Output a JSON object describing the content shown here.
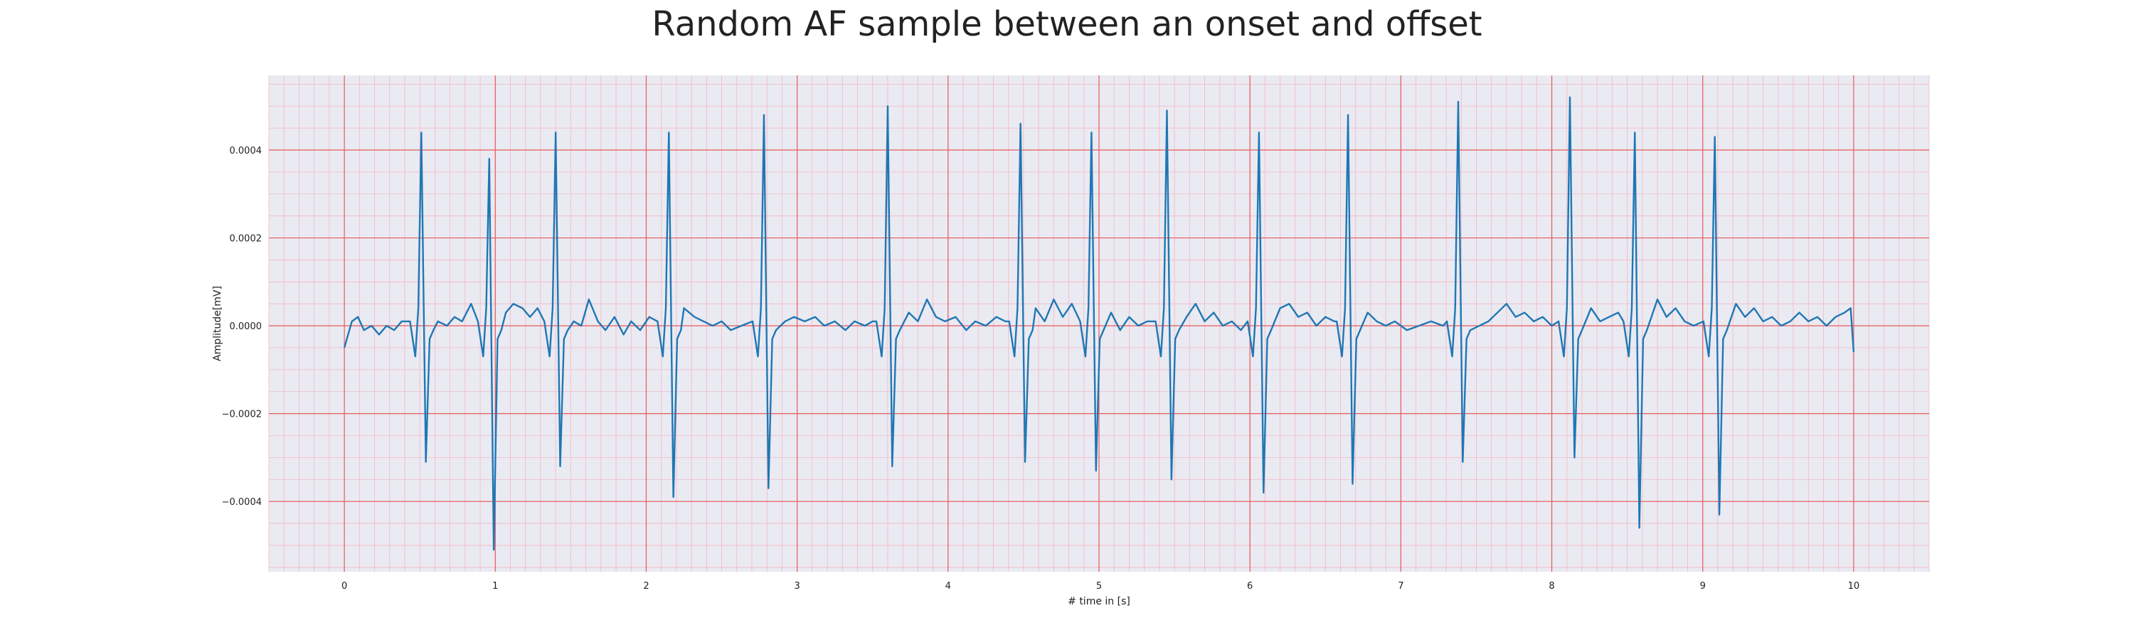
{
  "chart_data": {
    "type": "line",
    "title": "Random AF sample between an onset and offset",
    "xlabel": "# time in [s]",
    "ylabel": "Amplitude[mV]",
    "xlim": [
      -0.5,
      10.5
    ],
    "ylim": [
      -0.00056,
      0.00057
    ],
    "xticks": [
      0,
      1,
      2,
      3,
      4,
      5,
      6,
      7,
      8,
      9,
      10
    ],
    "xtick_labels": [
      "0",
      "1",
      "2",
      "3",
      "4",
      "5",
      "6",
      "7",
      "8",
      "9",
      "10"
    ],
    "yticks": [
      -0.0004,
      -0.0002,
      0.0,
      0.0002,
      0.0004
    ],
    "ytick_labels": [
      "−0.0004",
      "−0.0002",
      "0.0000",
      "0.0002",
      "0.0004"
    ],
    "grid": true,
    "minor_grid": true,
    "colors": {
      "line": "#1f77b4",
      "plot_background": "#eaeaf2",
      "major_grid": "#e8595a",
      "minor_grid": "#f4b6c2"
    },
    "baseline_ripple": [
      [
        0.0,
        -5e-05
      ],
      [
        0.05,
        1e-05
      ],
      [
        0.09,
        2e-05
      ],
      [
        0.13,
        -1e-05
      ],
      [
        0.18,
        0.0
      ],
      [
        0.23,
        -2e-05
      ],
      [
        0.28,
        0.0
      ],
      [
        0.33,
        -1e-05
      ],
      [
        0.38,
        1e-05
      ],
      [
        0.44,
        0.0
      ],
      [
        0.55,
        -2e-05
      ],
      [
        0.62,
        1e-05
      ],
      [
        0.68,
        0.0
      ],
      [
        0.73,
        2e-05
      ],
      [
        0.78,
        1e-05
      ],
      [
        0.84,
        5e-05
      ],
      [
        0.89,
        2e-05
      ],
      [
        1.07,
        3e-05
      ],
      [
        1.12,
        5e-05
      ],
      [
        1.18,
        4e-05
      ],
      [
        1.23,
        2e-05
      ],
      [
        1.28,
        4e-05
      ],
      [
        1.33,
        1e-05
      ],
      [
        1.46,
        2e-05
      ],
      [
        1.52,
        1e-05
      ],
      [
        1.57,
        0.0
      ],
      [
        1.62,
        6e-05
      ],
      [
        1.68,
        1e-05
      ],
      [
        1.73,
        -1e-05
      ],
      [
        1.79,
        2e-05
      ],
      [
        1.85,
        -2e-05
      ],
      [
        1.9,
        1e-05
      ],
      [
        1.96,
        -1e-05
      ],
      [
        2.02,
        2e-05
      ],
      [
        2.08,
        1e-05
      ],
      [
        2.2,
        1e-05
      ],
      [
        2.25,
        4e-05
      ],
      [
        2.32,
        2e-05
      ],
      [
        2.38,
        1e-05
      ],
      [
        2.44,
        0.0
      ],
      [
        2.5,
        1e-05
      ],
      [
        2.56,
        -1e-05
      ],
      [
        2.63,
        0.0
      ],
      [
        2.7,
        1e-05
      ],
      [
        2.86,
        2e-05
      ],
      [
        2.92,
        1e-05
      ],
      [
        2.98,
        2e-05
      ],
      [
        3.05,
        1e-05
      ],
      [
        3.12,
        2e-05
      ],
      [
        3.18,
        0.0
      ],
      [
        3.25,
        1e-05
      ],
      [
        3.32,
        -1e-05
      ],
      [
        3.38,
        1e-05
      ],
      [
        3.45,
        0.0
      ],
      [
        3.5,
        1e-05
      ],
      [
        3.55,
        0.0
      ],
      [
        3.68,
        1e-05
      ],
      [
        3.74,
        3e-05
      ],
      [
        3.8,
        1e-05
      ],
      [
        3.86,
        6e-05
      ],
      [
        3.92,
        2e-05
      ],
      [
        3.98,
        1e-05
      ],
      [
        4.05,
        2e-05
      ],
      [
        4.12,
        -1e-05
      ],
      [
        4.18,
        1e-05
      ],
      [
        4.25,
        0.0
      ],
      [
        4.32,
        2e-05
      ],
      [
        4.38,
        1e-05
      ],
      [
        4.52,
        1e-05
      ],
      [
        4.58,
        4e-05
      ],
      [
        4.64,
        1e-05
      ],
      [
        4.7,
        6e-05
      ],
      [
        4.76,
        2e-05
      ],
      [
        4.82,
        5e-05
      ],
      [
        4.88,
        2e-05
      ],
      [
        5.02,
        1e-05
      ],
      [
        5.08,
        3e-05
      ],
      [
        5.14,
        -1e-05
      ],
      [
        5.2,
        2e-05
      ],
      [
        5.26,
        0.0
      ],
      [
        5.32,
        1e-05
      ],
      [
        5.38,
        2e-05
      ],
      [
        5.52,
        3e-05
      ],
      [
        5.58,
        2e-05
      ],
      [
        5.64,
        5e-05
      ],
      [
        5.7,
        1e-05
      ],
      [
        5.76,
        3e-05
      ],
      [
        5.82,
        0.0
      ],
      [
        5.88,
        1e-05
      ],
      [
        5.94,
        -1e-05
      ],
      [
        6.0,
        1e-05
      ],
      [
        6.14,
        1e-05
      ],
      [
        6.2,
        4e-05
      ],
      [
        6.26,
        5e-05
      ],
      [
        6.32,
        2e-05
      ],
      [
        6.38,
        3e-05
      ],
      [
        6.44,
        0.0
      ],
      [
        6.5,
        2e-05
      ],
      [
        6.56,
        1e-05
      ],
      [
        6.72,
        2e-05
      ],
      [
        6.78,
        3e-05
      ],
      [
        6.84,
        1e-05
      ],
      [
        6.9,
        0.0
      ],
      [
        6.96,
        1e-05
      ],
      [
        7.04,
        -1e-05
      ],
      [
        7.12,
        0.0
      ],
      [
        7.2,
        1e-05
      ],
      [
        7.28,
        0.0
      ],
      [
        7.34,
        1e-05
      ],
      [
        7.46,
        2e-05
      ],
      [
        7.52,
        0.0
      ],
      [
        7.58,
        1e-05
      ],
      [
        7.64,
        3e-05
      ],
      [
        7.7,
        5e-05
      ],
      [
        7.76,
        2e-05
      ],
      [
        7.82,
        3e-05
      ],
      [
        7.88,
        1e-05
      ],
      [
        7.94,
        2e-05
      ],
      [
        8.0,
        0.0
      ],
      [
        8.06,
        1e-05
      ],
      [
        8.2,
        2e-05
      ],
      [
        8.26,
        4e-05
      ],
      [
        8.32,
        1e-05
      ],
      [
        8.38,
        2e-05
      ],
      [
        8.44,
        3e-05
      ],
      [
        8.5,
        1e-05
      ],
      [
        8.64,
        3e-05
      ],
      [
        8.7,
        6e-05
      ],
      [
        8.76,
        2e-05
      ],
      [
        8.82,
        4e-05
      ],
      [
        8.88,
        1e-05
      ],
      [
        8.94,
        0.0
      ],
      [
        9.0,
        1e-05
      ],
      [
        9.16,
        2e-05
      ],
      [
        9.22,
        5e-05
      ],
      [
        9.28,
        2e-05
      ],
      [
        9.34,
        4e-05
      ],
      [
        9.4,
        1e-05
      ],
      [
        9.46,
        2e-05
      ],
      [
        9.52,
        0.0
      ],
      [
        9.58,
        1e-05
      ],
      [
        9.64,
        3e-05
      ],
      [
        9.7,
        1e-05
      ],
      [
        9.76,
        2e-05
      ],
      [
        9.82,
        0.0
      ],
      [
        9.88,
        2e-05
      ],
      [
        9.94,
        3e-05
      ],
      [
        9.98,
        4e-05
      ],
      [
        10.0,
        -6e-05
      ]
    ],
    "beats": [
      {
        "t": 0.51,
        "r": 0.00044,
        "s": -0.00031
      },
      {
        "t": 0.96,
        "r": 0.00038,
        "s": -0.00051
      },
      {
        "t": 1.4,
        "r": 0.00044,
        "s": -0.00032
      },
      {
        "t": 2.15,
        "r": 0.00044,
        "s": -0.00039
      },
      {
        "t": 2.78,
        "r": 0.00048,
        "s": -0.00037
      },
      {
        "t": 3.6,
        "r": 0.0005,
        "s": -0.00032
      },
      {
        "t": 4.48,
        "r": 0.00046,
        "s": -0.00031
      },
      {
        "t": 4.95,
        "r": 0.00044,
        "s": -0.00033
      },
      {
        "t": 5.45,
        "r": 0.00049,
        "s": -0.00035
      },
      {
        "t": 6.06,
        "r": 0.00044,
        "s": -0.00038
      },
      {
        "t": 6.65,
        "r": 0.00048,
        "s": -0.00036
      },
      {
        "t": 7.38,
        "r": 0.00051,
        "s": -0.00031
      },
      {
        "t": 8.12,
        "r": 0.00052,
        "s": -0.0003
      },
      {
        "t": 8.55,
        "r": 0.00044,
        "s": -0.00046
      },
      {
        "t": 9.08,
        "r": 0.00043,
        "s": -0.00043
      }
    ]
  }
}
